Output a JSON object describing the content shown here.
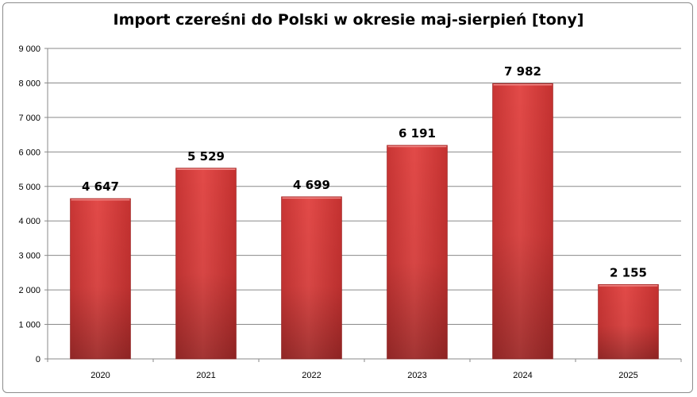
{
  "chart_data": {
    "type": "bar",
    "title": "Import czereśni do Polski w okresie maj-sierpień [tony]",
    "categories": [
      "2020",
      "2021",
      "2022",
      "2023",
      "2024",
      "2025"
    ],
    "values": [
      4647,
      5529,
      4699,
      6191,
      7982,
      2155
    ],
    "data_labels": [
      "4 647",
      "5 529",
      "4 699",
      "6 191",
      "7 982",
      "2 155"
    ],
    "yticks": [
      0,
      1000,
      2000,
      3000,
      4000,
      5000,
      6000,
      7000,
      8000,
      9000
    ],
    "ytick_labels": [
      "0",
      "1 000",
      "2 000",
      "3 000",
      "4 000",
      "5 000",
      "6 000",
      "7 000",
      "8 000",
      "9 000"
    ],
    "ylim": [
      0,
      9000
    ],
    "grid": true,
    "legend": "none",
    "bar_color": "#d9403f"
  }
}
